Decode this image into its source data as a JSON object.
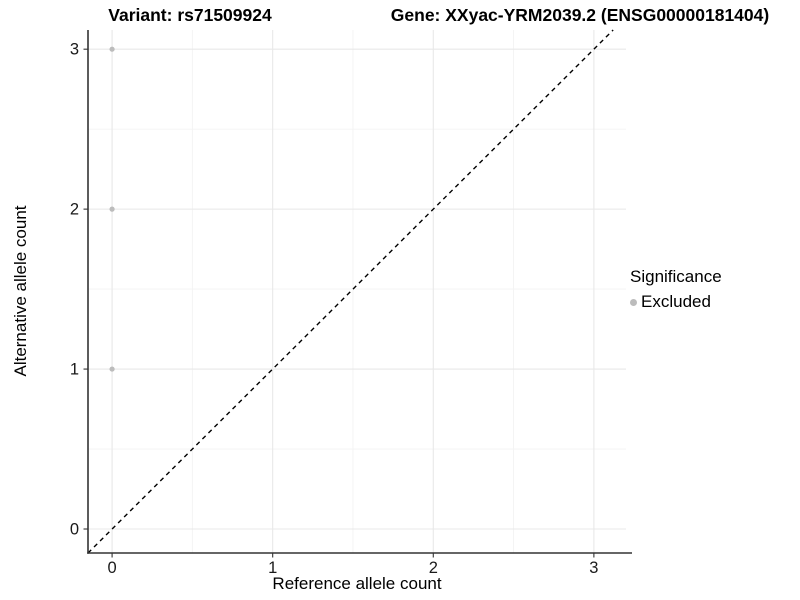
{
  "chart_data": {
    "type": "scatter",
    "title_left": "Variant: rs71509924",
    "title_right": "Gene: XXyac-YRM2039.2 (ENSG00000181404)",
    "xlabel": "Reference allele count",
    "ylabel": "Alternative allele count",
    "xlim": [
      -0.15,
      3.2
    ],
    "ylim": [
      -0.15,
      3.12
    ],
    "x_ticks": [
      0,
      1,
      2,
      3
    ],
    "y_ticks": [
      0,
      1,
      2,
      3
    ],
    "x_minor_ticks": [
      0.5,
      1.5,
      2.5
    ],
    "y_minor_ticks": [
      0.5,
      1.5,
      2.5
    ],
    "grid": true,
    "legend_position": "right",
    "series": [
      {
        "name": "Excluded",
        "color": "#bcbcbc",
        "marker": "circle",
        "points": [
          {
            "x": 0,
            "y": 1
          },
          {
            "x": 0,
            "y": 2
          },
          {
            "x": 0,
            "y": 3
          }
        ]
      }
    ],
    "reference_line": {
      "type": "identity",
      "equation": "y = x",
      "style": "dashed",
      "color": "#000000"
    },
    "legend": {
      "title": "Significance",
      "items": [
        {
          "label": "Excluded",
          "color": "#bcbcbc",
          "marker": "circle"
        }
      ]
    },
    "colors": {
      "background": "#ffffff",
      "grid_major": "#e8e8e8",
      "grid_minor": "#f3f3f3",
      "axis_line": "#333333",
      "tick_mark": "#333333",
      "tick_label": "#1a1a1a",
      "point": "#bcbcbc",
      "reference_line": "#000000"
    }
  }
}
